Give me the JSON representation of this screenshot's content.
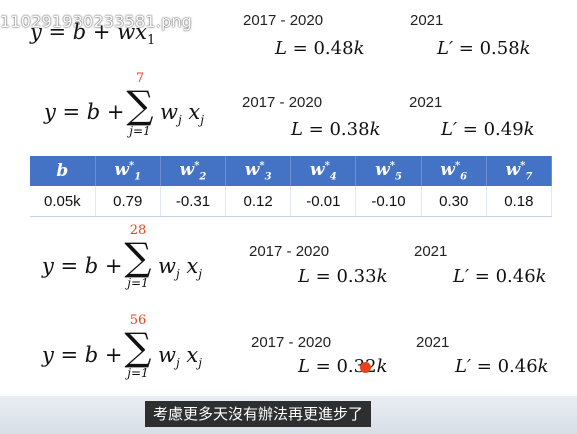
{
  "filename_overlay": "110291930233581.png",
  "models": [
    {
      "formula_prefix": "y = b + ",
      "linear_term": "wx",
      "linear_sub": "1",
      "period_train": "2017 - 2020",
      "loss_train_label": "L = ",
      "loss_train_value": "0.48",
      "loss_train_unit": "k",
      "period_test": "2021",
      "loss_test_label": "L′ = ",
      "loss_test_value": "0.58",
      "loss_test_unit": "k"
    },
    {
      "formula_prefix": "y = b + ",
      "sum_upper": "7",
      "sum_lower": "j=1",
      "sum_term": "w",
      "sum_term_sub": "j",
      "sum_term_x": " x",
      "sum_term_x_sub": "j",
      "period_train": "2017 - 2020",
      "loss_train_label": "L = ",
      "loss_train_value": "0.38",
      "loss_train_unit": "k",
      "period_test": "2021",
      "loss_test_label": "L′ = ",
      "loss_test_value": "0.49",
      "loss_test_unit": "k"
    },
    {
      "formula_prefix": "y = b + ",
      "sum_upper": "28",
      "sum_lower": "j=1",
      "sum_term": "w",
      "sum_term_sub": "j",
      "sum_term_x": " x",
      "sum_term_x_sub": "j",
      "period_train": "2017 - 2020",
      "loss_train_label": "L = ",
      "loss_train_value": "0.33",
      "loss_train_unit": "k",
      "period_test": "2021",
      "loss_test_label": "L′ = ",
      "loss_test_value": "0.46",
      "loss_test_unit": "k"
    },
    {
      "formula_prefix": "y = b + ",
      "sum_upper": "56",
      "sum_lower": "j=1",
      "sum_term": "w",
      "sum_term_sub": "j",
      "sum_term_x": " x",
      "sum_term_x_sub": "j",
      "period_train": "2017 - 2020",
      "loss_train_label": "L = ",
      "loss_train_value": "0.32",
      "loss_train_unit": "k",
      "period_test": "2021",
      "loss_test_label": "L′ = ",
      "loss_test_value": "0.46",
      "loss_test_unit": "k"
    }
  ],
  "weights_table": {
    "headers": [
      {
        "base": "b",
        "sub": "",
        "sup": ""
      },
      {
        "base": "w",
        "sub": "1",
        "sup": "*"
      },
      {
        "base": "w",
        "sub": "2",
        "sup": "*"
      },
      {
        "base": "w",
        "sub": "3",
        "sup": "*"
      },
      {
        "base": "w",
        "sub": "4",
        "sup": "*"
      },
      {
        "base": "w",
        "sub": "5",
        "sup": "*"
      },
      {
        "base": "w",
        "sub": "6",
        "sup": "*"
      },
      {
        "base": "w",
        "sub": "7",
        "sup": "*"
      }
    ],
    "values": [
      "0.05k",
      "0.79",
      "-0.31",
      "0.12",
      "-0.01",
      "-0.10",
      "0.30",
      "0.18"
    ],
    "header_color": "#4472c4"
  },
  "subtitle": "考慮更多天沒有辦法再更進步了",
  "accent_color": "#e8421c"
}
